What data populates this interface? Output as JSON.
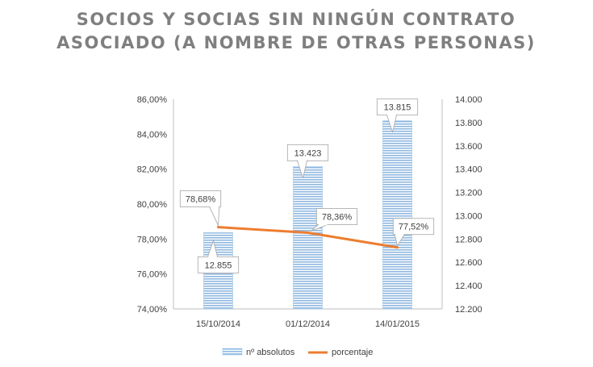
{
  "chart_data": {
    "type": "bar",
    "title_lines": [
      "SOCIOS Y SOCIAS SIN NINGÚN CONTRATO",
      "ASOCIADO (A NOMBRE DE OTRAS PERSONAS)"
    ],
    "categories": [
      "15/10/2014",
      "01/12/2014",
      "14/01/2015"
    ],
    "series": [
      {
        "name": "nº absolutos",
        "kind": "bar",
        "axis": "right",
        "values": [
          12855,
          13423,
          13815
        ],
        "labels": [
          "12.855",
          "13.423",
          "13.815"
        ],
        "color": "#9dc3e6"
      },
      {
        "name": "porcentaje",
        "kind": "line",
        "axis": "left",
        "values": [
          78.68,
          78.36,
          77.52
        ],
        "labels": [
          "78,68%",
          "78,36%",
          "77,52%"
        ],
        "color": "#ed7d31"
      }
    ],
    "left_axis": {
      "ylim": [
        74,
        86
      ],
      "ticks": [
        74,
        76,
        78,
        80,
        82,
        84,
        86
      ],
      "tick_labels": [
        "74,00%",
        "76,00%",
        "78,00%",
        "80,00%",
        "82,00%",
        "84,00%",
        "86,00%"
      ]
    },
    "right_axis": {
      "ylim": [
        12200,
        14000
      ],
      "ticks": [
        12200,
        12400,
        12600,
        12800,
        13000,
        13200,
        13400,
        13600,
        13800,
        14000
      ],
      "tick_labels": [
        "12.200",
        "12.400",
        "12.600",
        "12.800",
        "13.000",
        "13.200",
        "13.400",
        "13.600",
        "13.800",
        "14.000"
      ]
    },
    "grid": false,
    "legend_position": "bottom"
  }
}
